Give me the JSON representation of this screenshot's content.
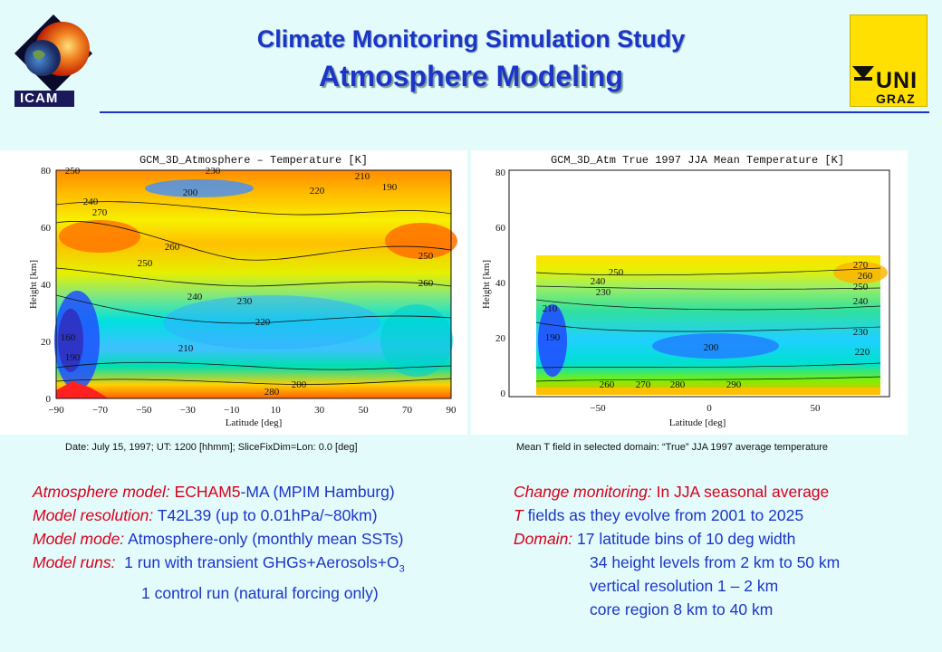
{
  "header": {
    "title": "Climate Monitoring Simulation Study",
    "subtitle": "Atmosphere Modeling",
    "logo_left_label": "ICAM",
    "logo_right_line1": "UNI",
    "logo_right_line2": "GRAZ"
  },
  "left_plot": {
    "title": "GCM_3D_Atmosphere – Temperature [K]",
    "xlabel": "Latitude [deg]",
    "ylabel": "Height [km]",
    "xticks": [
      "−90",
      "−70",
      "−50",
      "−30",
      "−10",
      "10",
      "30",
      "50",
      "70",
      "90"
    ],
    "yticks": [
      "0",
      "20",
      "40",
      "60",
      "80"
    ],
    "contour_labels": [
      "250",
      "230",
      "220",
      "210",
      "200",
      "190",
      "240",
      "260",
      "270",
      "250",
      "160",
      "190",
      "280",
      "260",
      "250",
      "240",
      "230",
      "220",
      "210",
      "200"
    ],
    "caption": "Date: July 15, 1997; UT: 1200 [hhmm]; SliceFixDim=Lon: 0.0 [deg]"
  },
  "right_plot": {
    "title": "GCM_3D_Atm True 1997 JJA Mean Temperature [K]",
    "xlabel": "Latitude [deg]",
    "ylabel": "Height [km]",
    "xticks": [
      "−50",
      "0",
      "50"
    ],
    "yticks": [
      "0",
      "20",
      "40",
      "60",
      "80"
    ],
    "contour_labels": [
      "250",
      "240",
      "230",
      "270",
      "260",
      "250",
      "240",
      "230",
      "220",
      "210",
      "200",
      "190",
      "290",
      "280",
      "270",
      "260"
    ],
    "caption": "Mean T field in selected domain: “True” JJA 1997 average temperature"
  },
  "left_text": [
    {
      "label": "Atmosphere model:",
      "value": " ECHAM5",
      "dash": "-",
      "value2": "MA (MPIM Hamburg)"
    },
    {
      "label": "Model resolution:",
      "value": " T42L39 (up to 0.01hPa/~80km)"
    },
    {
      "label": "Model mode:",
      "value": " Atmosphere-only (monthly mean SSTs)"
    },
    {
      "label": "Model runs:",
      "value": "  1 run with transient GHGs+Aerosols+O",
      "sub": "3"
    },
    {
      "label": "",
      "value": "1 control run (natural forcing only)"
    }
  ],
  "right_text": [
    {
      "label": "Change monitoring:",
      "value": " In JJA seasonal average"
    },
    {
      "label": "T",
      "value": " fields as they evolve from 2001 to 2025",
      "label_blue": false
    },
    {
      "label": "Domain:",
      "value": " 17 latitude bins of 10 deg width"
    },
    {
      "label": "",
      "value": "34 height levels from 2 km to 50 km"
    },
    {
      "label": "",
      "value": "vertical resolution 1 – 2 km"
    },
    {
      "label": "",
      "value": "core region 8 km to 40 km"
    }
  ],
  "colors": {
    "background": "#e3fbfb",
    "title_blue": "#1c35c8",
    "label_red": "#d8001c",
    "uni_yellow": "#ffe000"
  }
}
